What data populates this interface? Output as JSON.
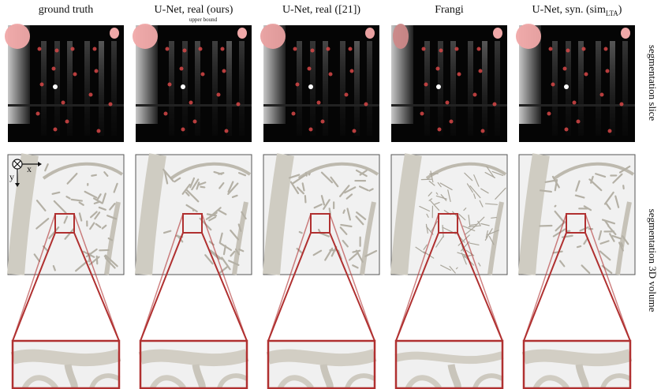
{
  "columns": [
    {
      "title": "ground truth"
    },
    {
      "title": "U-Net, real (ours)",
      "note": "upper bound"
    },
    {
      "title": "U-Net, real ([21])"
    },
    {
      "title": "Frangi"
    },
    {
      "title": "U-Net, syn. (sim",
      "subscript": "LTA",
      "title_end": ")"
    }
  ],
  "row_labels": [
    "segmentation slice",
    "segmentation 3D volume"
  ],
  "axes": {
    "x": "x",
    "y": "y"
  }
}
